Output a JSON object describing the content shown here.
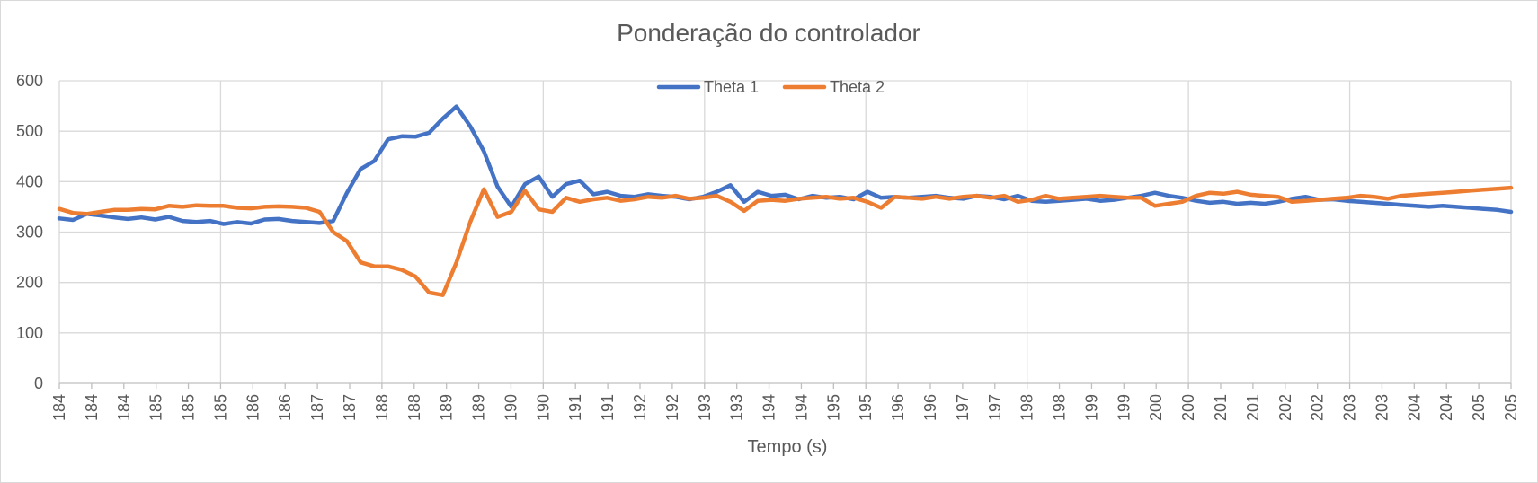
{
  "chart_data": {
    "type": "line",
    "title": "Ponderação do controlador",
    "xlabel": "Tempo (s)",
    "ylabel": "",
    "ylim": [
      0,
      600
    ],
    "y_ticks": [
      "0",
      "100",
      "200",
      "300",
      "400",
      "500",
      "600"
    ],
    "x_range": [
      184,
      205.2
    ],
    "x_ticks": [
      "184",
      "184",
      "184",
      "185",
      "185",
      "185",
      "186",
      "186",
      "187",
      "187",
      "188",
      "188",
      "189",
      "189",
      "190",
      "190",
      "191",
      "191",
      "192",
      "192",
      "193",
      "193",
      "194",
      "194",
      "195",
      "195",
      "196",
      "196",
      "197",
      "197",
      "198",
      "198",
      "199",
      "199",
      "200",
      "200",
      "201",
      "201",
      "202",
      "202",
      "203",
      "203",
      "204",
      "204",
      "205",
      "205"
    ],
    "grid": true,
    "legend_position": "top-center",
    "series": [
      {
        "name": "Theta 1",
        "color": "#4472C4",
        "x": [
          184.0,
          184.2,
          184.4,
          184.6,
          184.8,
          185.0,
          185.2,
          185.4,
          185.6,
          185.8,
          186.0,
          186.2,
          186.4,
          186.6,
          186.8,
          187.0,
          187.2,
          187.4,
          187.6,
          187.8,
          188.0,
          188.2,
          188.4,
          188.6,
          188.8,
          189.0,
          189.2,
          189.4,
          189.6,
          189.8,
          190.0,
          190.2,
          190.4,
          190.6,
          190.8,
          191.0,
          191.2,
          191.4,
          191.6,
          191.8,
          192.0,
          192.2,
          192.4,
          192.6,
          192.8,
          193.0,
          193.2,
          193.4,
          193.6,
          193.8,
          194.0,
          194.2,
          194.4,
          194.6,
          194.8,
          195.0,
          195.2,
          195.4,
          195.6,
          195.8,
          196.0,
          196.2,
          196.4,
          196.6,
          196.8,
          197.0,
          197.2,
          197.4,
          197.6,
          197.8,
          198.0,
          198.2,
          198.4,
          198.6,
          198.8,
          199.0,
          199.2,
          199.4,
          199.6,
          199.8,
          200.0,
          200.2,
          200.4,
          200.6,
          200.8,
          201.0,
          201.2,
          201.4,
          201.6,
          201.8,
          202.0,
          202.2,
          202.4,
          202.6,
          202.8,
          203.0,
          203.2,
          203.4,
          203.6,
          203.8,
          204.0,
          204.2,
          204.4,
          204.6,
          204.8,
          205.0,
          205.2
        ],
        "values": [
          327,
          324,
          336,
          333,
          329,
          326,
          329,
          325,
          330,
          322,
          320,
          322,
          316,
          320,
          317,
          325,
          326,
          322,
          320,
          318,
          322,
          378,
          425,
          441,
          484,
          490,
          489,
          497,
          525,
          549,
          510,
          460,
          390,
          350,
          395,
          410,
          370,
          395,
          402,
          375,
          380,
          372,
          370,
          375,
          372,
          370,
          365,
          370,
          380,
          393,
          360,
          380,
          372,
          374,
          365,
          372,
          368,
          370,
          365,
          380,
          368,
          370,
          368,
          370,
          372,
          368,
          366,
          372,
          370,
          365,
          372,
          362,
          360,
          362,
          364,
          366,
          362,
          364,
          368,
          372,
          378,
          372,
          368,
          362,
          358,
          360,
          356,
          358,
          356,
          360,
          366,
          370,
          364,
          365,
          362,
          360,
          358,
          356,
          354,
          352,
          350,
          352,
          350,
          348,
          346,
          344,
          340
        ]
      },
      {
        "name": "Theta 2",
        "color": "#ED7D31",
        "x": [
          184.0,
          184.2,
          184.4,
          184.6,
          184.8,
          185.0,
          185.2,
          185.4,
          185.6,
          185.8,
          186.0,
          186.2,
          186.4,
          186.6,
          186.8,
          187.0,
          187.2,
          187.4,
          187.6,
          187.8,
          188.0,
          188.2,
          188.4,
          188.6,
          188.8,
          189.0,
          189.2,
          189.4,
          189.6,
          189.8,
          190.0,
          190.2,
          190.4,
          190.6,
          190.8,
          191.0,
          191.2,
          191.4,
          191.6,
          191.8,
          192.0,
          192.2,
          192.4,
          192.6,
          192.8,
          193.0,
          193.2,
          193.4,
          193.6,
          193.8,
          194.0,
          194.2,
          194.4,
          194.6,
          194.8,
          195.0,
          195.2,
          195.4,
          195.6,
          195.8,
          196.0,
          196.2,
          196.4,
          196.6,
          196.8,
          197.0,
          197.2,
          197.4,
          197.6,
          197.8,
          198.0,
          198.2,
          198.4,
          198.6,
          198.8,
          199.0,
          199.2,
          199.4,
          199.6,
          199.8,
          200.0,
          200.2,
          200.4,
          200.6,
          200.8,
          201.0,
          201.2,
          201.4,
          201.6,
          201.8,
          202.0,
          202.2,
          202.4,
          202.6,
          202.8,
          203.0,
          203.2,
          203.4,
          203.6,
          203.8,
          204.0,
          204.2,
          204.4,
          204.6,
          204.8,
          205.0,
          205.2
        ],
        "values": [
          346,
          338,
          336,
          340,
          344,
          344,
          346,
          345,
          352,
          350,
          353,
          352,
          352,
          348,
          347,
          350,
          351,
          350,
          348,
          340,
          300,
          282,
          240,
          232,
          232,
          225,
          212,
          180,
          175,
          240,
          320,
          385,
          330,
          340,
          382,
          345,
          340,
          368,
          360,
          365,
          368,
          362,
          365,
          370,
          368,
          372,
          366,
          368,
          372,
          360,
          342,
          362,
          364,
          362,
          366,
          368,
          370,
          366,
          368,
          360,
          348,
          370,
          368,
          366,
          370,
          366,
          370,
          372,
          368,
          372,
          360,
          364,
          372,
          366,
          368,
          370,
          372,
          370,
          368,
          368,
          352,
          356,
          360,
          372,
          378,
          376,
          380,
          374,
          372,
          370,
          360,
          362,
          364,
          366,
          368,
          372,
          370,
          366,
          372,
          374,
          376,
          378,
          380,
          382,
          384,
          386,
          388
        ]
      }
    ]
  }
}
